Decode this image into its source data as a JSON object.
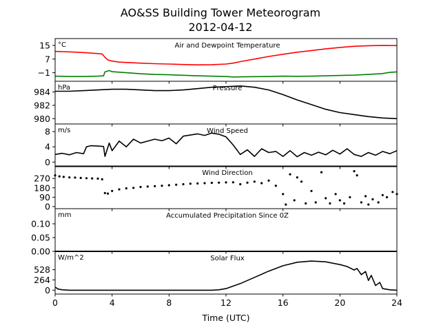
{
  "title_line1": "AO&SS Building Tower Meteorogram",
  "title_line2": "2012-04-12",
  "chart_data": {
    "type": "line",
    "xlabel": "Time (UTC)",
    "xlim": [
      0,
      24
    ],
    "xticks": [
      0,
      4,
      8,
      12,
      16,
      20,
      24
    ],
    "panels": [
      {
        "id": "temperature",
        "title": "Air and Dewpoint Temperature",
        "unit": "°C",
        "ylim": [
          -6,
          19
        ],
        "yticks": [
          {
            "v": 15,
            "label": "15"
          },
          {
            "v": 7,
            "label": "7"
          },
          {
            "v": -1,
            "label": "−1"
          }
        ],
        "series": [
          {
            "color": "#ff0000",
            "style": "line",
            "x": [
              0,
              0.5,
              1,
              1.5,
              2,
              2.5,
              3,
              3.3,
              3.5,
              3.7,
              4,
              4.5,
              5,
              6,
              7,
              8,
              9,
              10,
              11,
              12,
              12.5,
              13,
              14,
              15,
              16,
              17,
              18,
              19,
              20,
              21,
              22,
              23,
              24
            ],
            "y": [
              11.5,
              11.3,
              11.2,
              11.0,
              10.8,
              10.5,
              10.2,
              10.0,
              8.0,
              6.5,
              5.8,
              5.2,
              5.0,
              4.6,
              4.3,
              4.1,
              3.8,
              3.6,
              3.7,
              4.1,
              4.6,
              5.5,
              7.0,
              8.5,
              9.8,
              11.0,
              12.0,
              13.0,
              13.8,
              14.5,
              14.8,
              15.0,
              14.9
            ]
          },
          {
            "color": "#008000",
            "style": "line",
            "x": [
              0,
              1,
              2,
              3,
              3.4,
              3.5,
              3.8,
              4,
              5,
              6,
              7,
              8,
              9,
              10,
              11,
              12,
              12.5,
              13,
              14,
              15,
              16,
              17,
              18,
              19,
              20,
              21,
              22,
              23,
              23.5,
              24
            ],
            "y": [
              -3.0,
              -3.2,
              -3.2,
              -3.0,
              -2.8,
              -0.5,
              0.3,
              -0.4,
              -1.0,
              -1.6,
              -2.0,
              -2.2,
              -2.5,
              -2.8,
              -3.0,
              -3.2,
              -3.5,
              -3.4,
              -3.3,
              -3.2,
              -3.0,
              -3.1,
              -3.0,
              -2.8,
              -2.6,
              -2.4,
              -2.0,
              -1.5,
              -0.8,
              -0.5
            ]
          }
        ]
      },
      {
        "id": "pressure",
        "title": "Pressure",
        "unit": "hPa",
        "ylim": [
          979.2,
          985.6
        ],
        "yticks": [
          {
            "v": 984,
            "label": "984"
          },
          {
            "v": 982,
            "label": "982"
          },
          {
            "v": 980,
            "label": "980"
          }
        ],
        "series": [
          {
            "color": "#000000",
            "style": "line",
            "x": [
              0,
              1,
              2,
              3,
              4,
              5,
              6,
              7,
              8,
              9,
              10,
              11,
              12,
              13,
              14,
              15,
              16,
              17,
              18,
              19,
              20,
              21,
              22,
              23,
              24
            ],
            "y": [
              984.1,
              984.1,
              984.2,
              984.3,
              984.4,
              984.4,
              984.3,
              984.2,
              984.2,
              984.3,
              984.5,
              984.7,
              984.8,
              984.9,
              984.7,
              984.3,
              983.6,
              982.8,
              982.1,
              981.4,
              980.9,
              980.6,
              980.3,
              980.1,
              980.0
            ]
          }
        ]
      },
      {
        "id": "wind_speed",
        "title": "Wind Speed",
        "unit": "m/s",
        "ylim": [
          -1.2,
          10.0
        ],
        "yticks": [
          {
            "v": 8,
            "label": "8"
          },
          {
            "v": 4,
            "label": "4"
          },
          {
            "v": 0,
            "label": "0"
          }
        ],
        "series": [
          {
            "color": "#000000",
            "style": "line",
            "x": [
              0,
              0.5,
              1,
              1.5,
              2,
              2.2,
              2.5,
              3,
              3.4,
              3.5,
              3.8,
              4,
              4.5,
              5,
              5.5,
              6,
              6.5,
              7,
              7.5,
              8,
              8.5,
              9,
              9.5,
              10,
              10.5,
              11,
              11.5,
              12,
              12.5,
              13,
              13.5,
              14,
              14.5,
              15,
              15.5,
              16,
              16.5,
              17,
              17.5,
              18,
              18.5,
              19,
              19.5,
              20,
              20.5,
              21,
              21.5,
              22,
              22.5,
              23,
              23.5,
              24
            ],
            "y": [
              2.0,
              2.3,
              1.9,
              2.5,
              2.2,
              4.0,
              4.3,
              4.2,
              4.1,
              1.5,
              5.0,
              3.0,
              5.5,
              4.0,
              6.0,
              5.0,
              5.5,
              6.0,
              5.6,
              6.3,
              4.8,
              6.8,
              7.1,
              7.4,
              7.0,
              7.6,
              7.3,
              6.6,
              4.5,
              2.0,
              3.2,
              1.5,
              3.5,
              2.5,
              2.8,
              1.5,
              3.0,
              1.4,
              2.5,
              1.8,
              2.6,
              1.9,
              3.1,
              2.1,
              3.5,
              2.0,
              1.5,
              2.5,
              1.8,
              2.8,
              2.2,
              3.0
            ]
          }
        ]
      },
      {
        "id": "wind_direction",
        "title": "Wind Direction",
        "unit": "",
        "ylim": [
          -20,
          390
        ],
        "yticks": [
          {
            "v": 270,
            "label": "270"
          },
          {
            "v": 180,
            "label": "180"
          },
          {
            "v": 90,
            "label": "90"
          },
          {
            "v": 0,
            "label": "0"
          }
        ],
        "series": [
          {
            "color": "#000000",
            "style": "dots",
            "x": [
              0,
              0.3,
              0.6,
              1,
              1.4,
              1.8,
              2.2,
              2.6,
              3.0,
              3.3,
              3.5,
              3.7,
              4.0,
              4.5,
              5,
              5.5,
              6,
              6.5,
              7,
              7.5,
              8,
              8.5,
              9,
              9.5,
              10,
              10.5,
              11,
              11.5,
              12,
              12.5,
              13,
              13.5,
              14,
              14.5,
              15,
              15.5,
              16,
              16.2,
              16.5,
              16.8,
              17.0,
              17.3,
              17.6,
              18,
              18.3,
              18.7,
              19,
              19.3,
              19.7,
              20,
              20.3,
              20.7,
              21,
              21.2,
              21.5,
              21.8,
              22,
              22.3,
              22.7,
              23,
              23.3,
              23.7,
              24
            ],
            "y": [
              300,
              290,
              285,
              280,
              278,
              275,
              272,
              270,
              268,
              262,
              130,
              125,
              150,
              165,
              175,
              180,
              188,
              192,
              196,
              200,
              205,
              210,
              215,
              220,
              222,
              225,
              228,
              230,
              232,
              233,
              215,
              230,
              240,
              225,
              250,
              200,
              120,
              20,
              310,
              60,
              280,
              240,
              30,
              150,
              40,
              330,
              80,
              30,
              120,
              60,
              30,
              90,
              340,
              300,
              40,
              100,
              20,
              70,
              40,
              110,
              90,
              140,
              120
            ]
          }
        ]
      },
      {
        "id": "precipitation",
        "title": "Accumulated Precipitation Since 0Z",
        "unit": "mm",
        "ylim": [
          0,
          0.155
        ],
        "yticks": [
          {
            "v": 0.1,
            "label": "0.10"
          },
          {
            "v": 0.05,
            "label": "0.05"
          },
          {
            "v": 0.0,
            "label": "0.00"
          }
        ],
        "series": [
          {
            "color": "#000000",
            "style": "line",
            "x": [
              0,
              24
            ],
            "y": [
              0,
              0
            ]
          }
        ]
      },
      {
        "id": "solar_flux",
        "title": "Solar Flux",
        "unit": "W/m^2",
        "ylim": [
          -100,
          1000
        ],
        "yticks": [
          {
            "v": 528,
            "label": "528"
          },
          {
            "v": 264,
            "label": "264"
          },
          {
            "v": 0,
            "label": "0"
          }
        ],
        "series": [
          {
            "color": "#000000",
            "style": "line",
            "x": [
              0,
              0.2,
              0.5,
              1,
              2,
              3,
              4,
              5,
              6,
              7,
              8,
              9,
              10,
              11,
              11.5,
              12,
              13,
              14,
              15,
              16,
              17,
              18,
              19,
              20,
              20.5,
              21,
              21.2,
              21.5,
              21.8,
              22,
              22.2,
              22.5,
              22.8,
              23,
              23.5,
              24
            ],
            "y": [
              80,
              30,
              10,
              0,
              0,
              0,
              0,
              0,
              0,
              0,
              0,
              0,
              0,
              0,
              10,
              40,
              170,
              330,
              490,
              630,
              720,
              750,
              730,
              660,
              610,
              520,
              560,
              400,
              480,
              250,
              380,
              120,
              200,
              40,
              10,
              0
            ]
          }
        ]
      }
    ]
  }
}
